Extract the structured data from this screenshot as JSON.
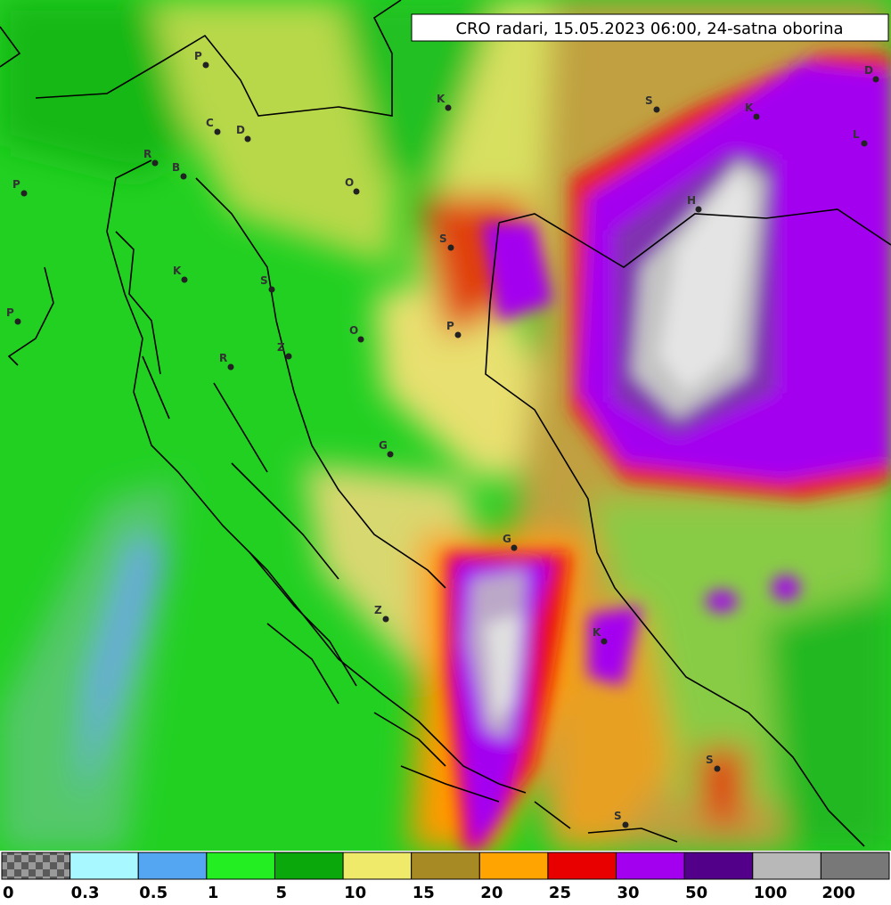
{
  "header": {
    "title": "CRO radari, 15.05.2023 06:00, 24-satna oborina"
  },
  "places": [
    "P",
    "C",
    "D",
    "K",
    "S",
    "K",
    "D",
    "L",
    "R",
    "B",
    "P",
    "O",
    "H",
    "S",
    "K",
    "S",
    "P",
    "O",
    "P",
    "Z",
    "R",
    "G",
    "G",
    "Z",
    "K",
    "S",
    "S"
  ],
  "legend": {
    "colors": [
      "checker",
      "#a8f8ff",
      "#55a6f2",
      "#22ee22",
      "#0aa80a",
      "#f0ea6a",
      "#a88a24",
      "#ffa400",
      "#e80000",
      "#a400f0",
      "#52008a",
      "#b8b8b8",
      "#787878"
    ],
    "labels": [
      "0",
      "0.3",
      "0.5",
      "1",
      "5",
      "10",
      "15",
      "20",
      "25",
      "30",
      "50",
      "100",
      "200"
    ]
  }
}
